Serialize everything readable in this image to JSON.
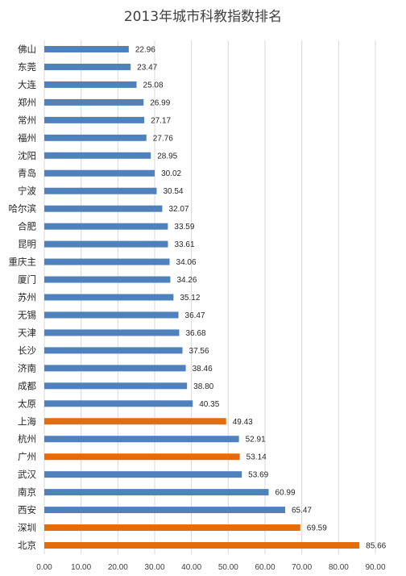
{
  "chart_data": {
    "type": "bar",
    "orientation": "horizontal",
    "title": "2013年城市科教指数排名",
    "xlabel": "",
    "ylabel": "",
    "xlim": [
      0,
      90
    ],
    "x_ticks": [
      "0.00",
      "10.00",
      "20.00",
      "30.00",
      "40.00",
      "50.00",
      "60.00",
      "70.00",
      "80.00",
      "90.00"
    ],
    "grid": true,
    "categories": [
      "佛山",
      "东莞",
      "大连",
      "郑州",
      "常州",
      "福州",
      "沈阳",
      "青岛",
      "宁波",
      "哈尔滨",
      "合肥",
      "昆明",
      "重庆主",
      "厦门",
      "苏州",
      "无锡",
      "天津",
      "长沙",
      "济南",
      "成都",
      "太原",
      "上海",
      "杭州",
      "广州",
      "武汉",
      "南京",
      "西安",
      "深圳",
      "北京"
    ],
    "values": [
      22.96,
      23.47,
      25.08,
      26.99,
      27.17,
      27.76,
      28.95,
      30.02,
      30.54,
      32.07,
      33.59,
      33.61,
      34.06,
      34.26,
      35.12,
      36.47,
      36.68,
      37.56,
      38.46,
      38.8,
      40.35,
      49.43,
      52.91,
      53.14,
      53.69,
      60.99,
      65.47,
      69.59,
      85.66
    ],
    "value_labels": [
      "22.96",
      "23.47",
      "25.08",
      "26.99",
      "27.17",
      "27.76",
      "28.95",
      "30.02",
      "30.54",
      "32.07",
      "33.59",
      "33.61",
      "34.06",
      "34.26",
      "35.12",
      "36.47",
      "36.68",
      "37.56",
      "38.46",
      "38.80",
      "40.35",
      "49.43",
      "52.91",
      "53.14",
      "53.69",
      "60.99",
      "65.47",
      "69.59",
      "85.66"
    ],
    "highlighted": [
      "上海",
      "广州",
      "深圳",
      "北京"
    ],
    "colors": {
      "default": "#4f81bd",
      "highlight": "#e46c0a",
      "grid": "#d9d9d9"
    }
  }
}
